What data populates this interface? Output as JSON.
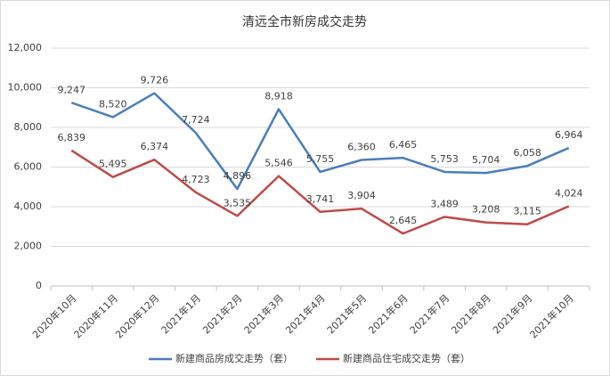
{
  "chart_data": {
    "type": "line",
    "title": "清远全市新房成交走势",
    "categories": [
      "2020年10月",
      "2020年11月",
      "2020年12月",
      "2021年1月",
      "2021年2月",
      "2021年3月",
      "2021年4月",
      "2021年5月",
      "2021年6月",
      "2021年7月",
      "2021年8月",
      "2021年9月",
      "2021年10月"
    ],
    "series": [
      {
        "name": "新建商品房成交走势（套）",
        "color": "#4a7ebb",
        "values": [
          9247,
          8520,
          9726,
          7724,
          4896,
          8918,
          5755,
          6360,
          6465,
          5753,
          5704,
          6058,
          6964
        ],
        "value_labels": [
          "9,247",
          "8,520",
          "9,726",
          "7,724",
          "4,896",
          "8,918",
          "5,755",
          "6,360",
          "6,465",
          "5,753",
          "5,704",
          "6,058",
          "6,964"
        ]
      },
      {
        "name": "新建商品住宅成交走势（套）",
        "color": "#be4b48",
        "values": [
          6839,
          5495,
          6374,
          4723,
          3535,
          5546,
          3741,
          3904,
          2645,
          3489,
          3208,
          3115,
          4024
        ],
        "value_labels": [
          "6,839",
          "5,495",
          "6,374",
          "4,723",
          "3,535",
          "5,546",
          "3,741",
          "3,904",
          "2,645",
          "3,489",
          "3,208",
          "3,115",
          "4,024"
        ]
      }
    ],
    "ylim": [
      0,
      12000
    ],
    "yticks": [
      {
        "value": 0,
        "label": "0"
      },
      {
        "value": 2000,
        "label": "2,000"
      },
      {
        "value": 4000,
        "label": "4,000"
      },
      {
        "value": 6000,
        "label": "6,000"
      },
      {
        "value": 8000,
        "label": "8,000"
      },
      {
        "value": 10000,
        "label": "10,000"
      },
      {
        "value": 12000,
        "label": "12,000"
      }
    ],
    "grid": true
  }
}
